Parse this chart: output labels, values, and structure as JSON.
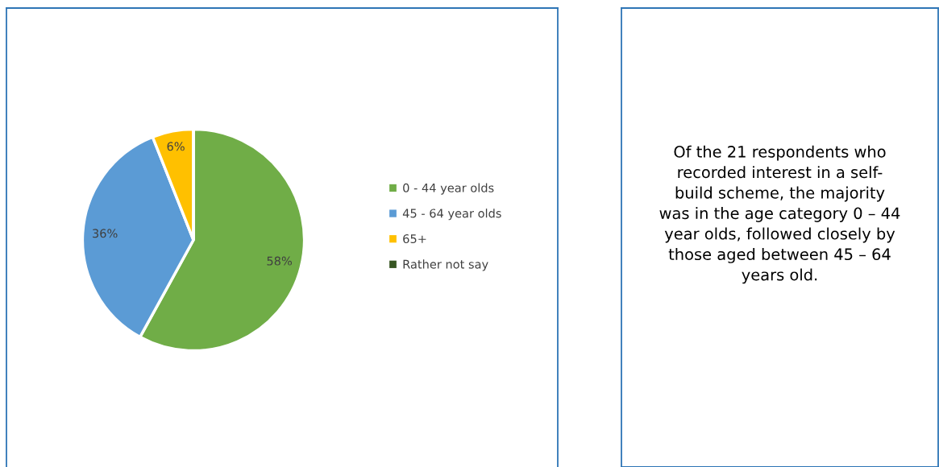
{
  "chart_data": [
    {
      "type": "pie",
      "categories": [
        "0 - 44 year olds",
        "45 - 64 year olds",
        "65+",
        "Rather not say"
      ],
      "values": [
        58,
        36,
        6,
        0
      ],
      "colors": [
        "#70ad47",
        "#5b9bd5",
        "#ffc000",
        "#375623"
      ],
      "value_labels": [
        "58%",
        "36%",
        "6%",
        null
      ],
      "legend": "right"
    },
    {
      "type": "other",
      "annotations": [
        "Of the 21 respondents who\nrecorded interest in a self-\nbuild scheme, the majority\nwas in the age category 0 – 44\nyear olds, followed closely by\nthose aged between 45 – 64\nyears old."
      ]
    }
  ]
}
